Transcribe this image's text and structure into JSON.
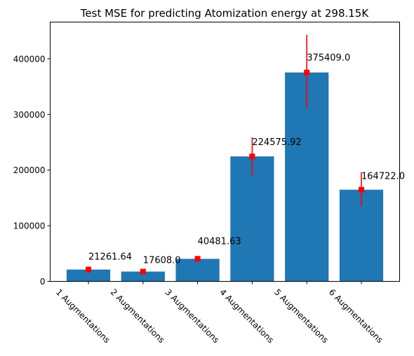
{
  "chart_data": {
    "type": "bar",
    "title": "Test MSE for predicting Atomization energy at 298.15K",
    "xlabel": "",
    "ylabel": "",
    "categories": [
      "1 Augmentations",
      "2 Augmentations",
      "3 Augmentations",
      "4 Augmentations",
      "5 Augmentations",
      "6 Augmentations"
    ],
    "values": [
      21261.64,
      17608.0,
      40481.63,
      224575.92,
      375409.0,
      164722.0
    ],
    "value_labels": [
      "21261.64",
      "17608.0",
      "40481.63",
      "224575.92",
      "375409.0",
      "164722.0"
    ],
    "error_bars": [
      {
        "low": 16500,
        "high": 26000
      },
      {
        "low": 14000,
        "high": 21500
      },
      {
        "low": 35500,
        "high": 46000
      },
      {
        "low": 190000,
        "high": 259000
      },
      {
        "low": 310000,
        "high": 443000
      },
      {
        "low": 135000,
        "high": 196000
      }
    ],
    "ylim": [
      0,
      466000
    ],
    "yticks": [
      0,
      100000,
      200000,
      300000,
      400000
    ],
    "ytick_labels": [
      "0",
      "100000",
      "200000",
      "300000",
      "400000"
    ],
    "colors": {
      "bar": "#1f77b4",
      "error": "#ff0000",
      "marker": "#ff0000"
    },
    "grid": false,
    "legend": "none"
  }
}
